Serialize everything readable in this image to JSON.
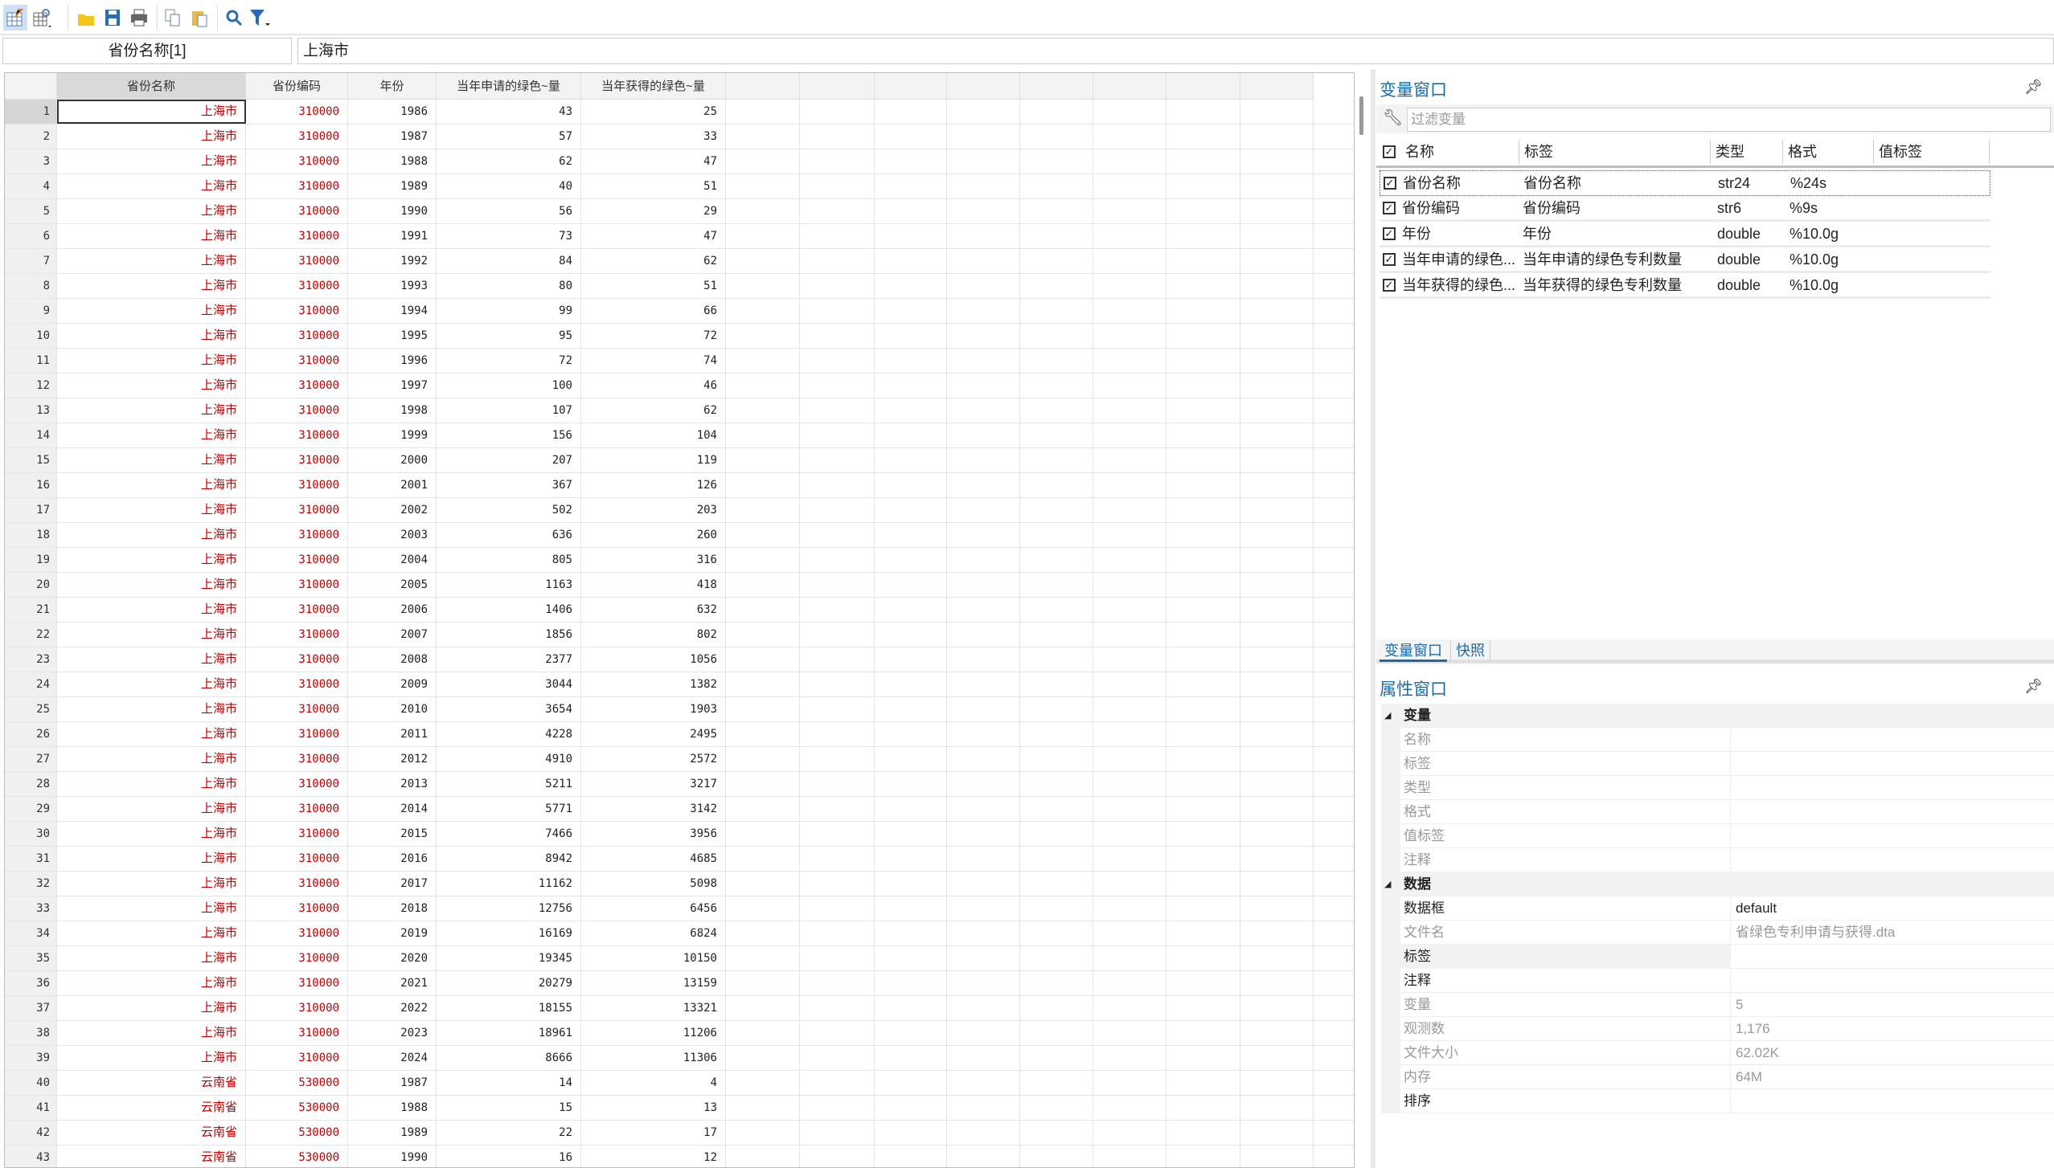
{
  "toolbar": {
    "icons": [
      "data-editor-edit-icon",
      "data-browser-icon",
      "open-folder-icon",
      "save-icon",
      "print-icon",
      "copy-icon",
      "paste-icon",
      "find-icon",
      "filter-icon"
    ]
  },
  "editbar": {
    "variable": "省份名称[1]",
    "value": "上海市"
  },
  "grid": {
    "columns": [
      "省份名称",
      "省份编码",
      "年份",
      "当年申请的绿色~量",
      "当年获得的绿色~量"
    ],
    "rows": [
      [
        "上海市",
        "310000",
        "1986",
        "43",
        "25"
      ],
      [
        "上海市",
        "310000",
        "1987",
        "57",
        "33"
      ],
      [
        "上海市",
        "310000",
        "1988",
        "62",
        "47"
      ],
      [
        "上海市",
        "310000",
        "1989",
        "40",
        "51"
      ],
      [
        "上海市",
        "310000",
        "1990",
        "56",
        "29"
      ],
      [
        "上海市",
        "310000",
        "1991",
        "73",
        "47"
      ],
      [
        "上海市",
        "310000",
        "1992",
        "84",
        "62"
      ],
      [
        "上海市",
        "310000",
        "1993",
        "80",
        "51"
      ],
      [
        "上海市",
        "310000",
        "1994",
        "99",
        "66"
      ],
      [
        "上海市",
        "310000",
        "1995",
        "95",
        "72"
      ],
      [
        "上海市",
        "310000",
        "1996",
        "72",
        "74"
      ],
      [
        "上海市",
        "310000",
        "1997",
        "100",
        "46"
      ],
      [
        "上海市",
        "310000",
        "1998",
        "107",
        "62"
      ],
      [
        "上海市",
        "310000",
        "1999",
        "156",
        "104"
      ],
      [
        "上海市",
        "310000",
        "2000",
        "207",
        "119"
      ],
      [
        "上海市",
        "310000",
        "2001",
        "367",
        "126"
      ],
      [
        "上海市",
        "310000",
        "2002",
        "502",
        "203"
      ],
      [
        "上海市",
        "310000",
        "2003",
        "636",
        "260"
      ],
      [
        "上海市",
        "310000",
        "2004",
        "805",
        "316"
      ],
      [
        "上海市",
        "310000",
        "2005",
        "1163",
        "418"
      ],
      [
        "上海市",
        "310000",
        "2006",
        "1406",
        "632"
      ],
      [
        "上海市",
        "310000",
        "2007",
        "1856",
        "802"
      ],
      [
        "上海市",
        "310000",
        "2008",
        "2377",
        "1056"
      ],
      [
        "上海市",
        "310000",
        "2009",
        "3044",
        "1382"
      ],
      [
        "上海市",
        "310000",
        "2010",
        "3654",
        "1903"
      ],
      [
        "上海市",
        "310000",
        "2011",
        "4228",
        "2495"
      ],
      [
        "上海市",
        "310000",
        "2012",
        "4910",
        "2572"
      ],
      [
        "上海市",
        "310000",
        "2013",
        "5211",
        "3217"
      ],
      [
        "上海市",
        "310000",
        "2014",
        "5771",
        "3142"
      ],
      [
        "上海市",
        "310000",
        "2015",
        "7466",
        "3956"
      ],
      [
        "上海市",
        "310000",
        "2016",
        "8942",
        "4685"
      ],
      [
        "上海市",
        "310000",
        "2017",
        "11162",
        "5098"
      ],
      [
        "上海市",
        "310000",
        "2018",
        "12756",
        "6456"
      ],
      [
        "上海市",
        "310000",
        "2019",
        "16169",
        "6824"
      ],
      [
        "上海市",
        "310000",
        "2020",
        "19345",
        "10150"
      ],
      [
        "上海市",
        "310000",
        "2021",
        "20279",
        "13159"
      ],
      [
        "上海市",
        "310000",
        "2022",
        "18155",
        "13321"
      ],
      [
        "上海市",
        "310000",
        "2023",
        "18961",
        "11206"
      ],
      [
        "上海市",
        "310000",
        "2024",
        "8666",
        "11306"
      ],
      [
        "云南省",
        "530000",
        "1987",
        "14",
        "4"
      ],
      [
        "云南省",
        "530000",
        "1988",
        "15",
        "13"
      ],
      [
        "云南省",
        "530000",
        "1989",
        "22",
        "17"
      ],
      [
        "云南省",
        "530000",
        "1990",
        "16",
        "12"
      ]
    ]
  },
  "variables_window": {
    "title": "变量窗口",
    "filter_placeholder": "过滤变量",
    "headers": {
      "name": "名称",
      "label": "标签",
      "type": "类型",
      "format": "格式",
      "value_label": "值标签"
    },
    "rows": [
      {
        "name": "省份名称",
        "label": "省份名称",
        "type": "str24",
        "format": "%24s"
      },
      {
        "name": "省份编码",
        "label": "省份编码",
        "type": "str6",
        "format": "%9s"
      },
      {
        "name": "年份",
        "label": "年份",
        "type": "double",
        "format": "%10.0g"
      },
      {
        "name": "当年申请的绿色...",
        "label": "当年申请的绿色专利数量",
        "type": "double",
        "format": "%10.0g"
      },
      {
        "name": "当年获得的绿色...",
        "label": "当年获得的绿色专利数量",
        "type": "double",
        "format": "%10.0g"
      }
    ]
  },
  "tabs": [
    "变量窗口",
    "快照"
  ],
  "properties_window": {
    "title": "属性窗口",
    "groups": [
      {
        "name": "变量",
        "items": [
          {
            "key": "名称",
            "value": ""
          },
          {
            "key": "标签",
            "value": ""
          },
          {
            "key": "类型",
            "value": ""
          },
          {
            "key": "格式",
            "value": ""
          },
          {
            "key": "值标签",
            "value": ""
          },
          {
            "key": "注释",
            "value": ""
          }
        ]
      },
      {
        "name": "数据",
        "items": [
          {
            "key": "数据框",
            "value": "default",
            "dark": true
          },
          {
            "key": "文件名",
            "value": "省绿色专利申请与获得.dta"
          },
          {
            "key": "标签",
            "value": "",
            "dark": true
          },
          {
            "key": "注释",
            "value": "",
            "dark": true
          },
          {
            "key": "变量",
            "value": "5"
          },
          {
            "key": "观测数",
            "value": "1,176"
          },
          {
            "key": "文件大小",
            "value": "62.02K"
          },
          {
            "key": "内存",
            "value": "64M"
          },
          {
            "key": "排序",
            "value": "",
            "dark": true
          }
        ]
      }
    ]
  }
}
